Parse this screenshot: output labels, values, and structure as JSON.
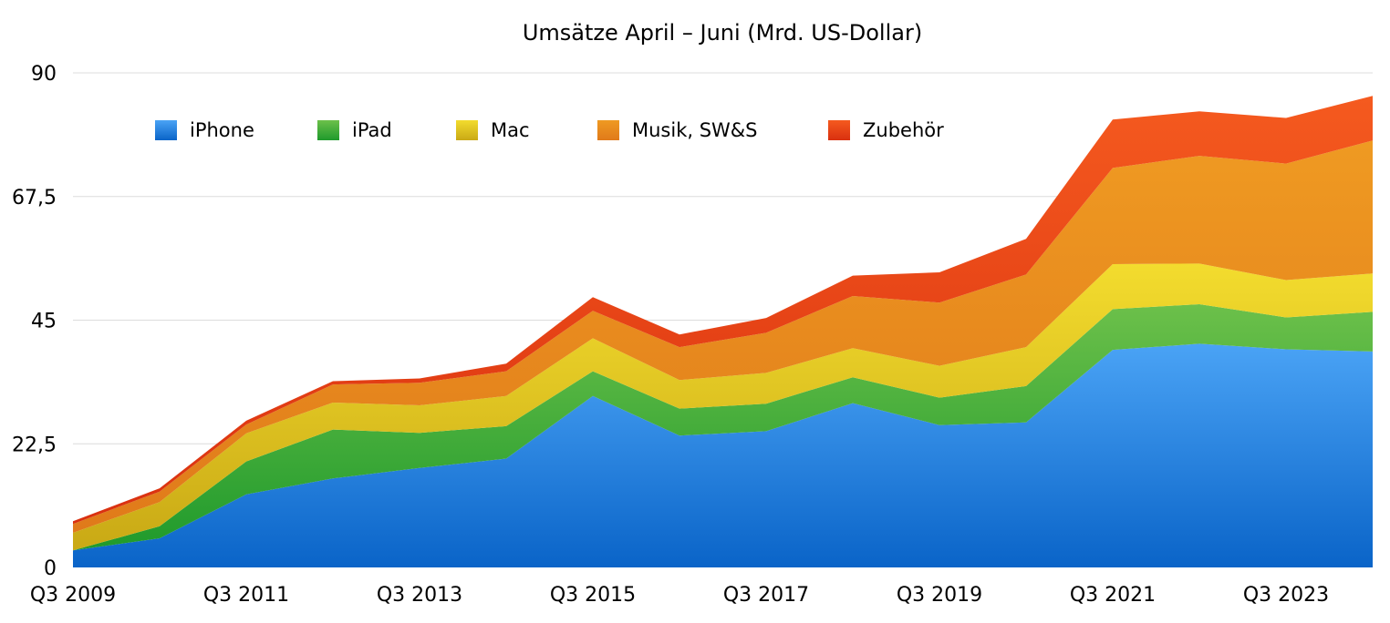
{
  "chart_data": {
    "type": "area",
    "stacked": true,
    "title": "Umsätze April – Juni (Mrd. US-Dollar)",
    "xlabel": "",
    "ylabel": "",
    "ylim": [
      0,
      90
    ],
    "y_ticks": [
      "0",
      "22,5",
      "45",
      "67,5",
      "90"
    ],
    "y_tick_values": [
      0,
      22.5,
      45,
      67.5,
      90
    ],
    "categories": [
      "Q3 2009",
      "Q3 2010",
      "Q3 2011",
      "Q3 2012",
      "Q3 2013",
      "Q3 2014",
      "Q3 2015",
      "Q3 2016",
      "Q3 2017",
      "Q3 2018",
      "Q3 2019",
      "Q3 2020",
      "Q3 2021",
      "Q3 2022",
      "Q3 2023",
      "Q3 2024"
    ],
    "x_tick_labels": [
      "Q3 2009",
      "Q3 2011",
      "Q3 2013",
      "Q3 2015",
      "Q3 2017",
      "Q3 2019",
      "Q3 2021",
      "Q3 2023"
    ],
    "grid": true,
    "legend_position": "top-left",
    "series": [
      {
        "name": "iPhone",
        "color_top": "#4aa3f5",
        "color_bottom": "#0a64c8",
        "values": [
          3.1,
          5.3,
          13.3,
          16.2,
          18.1,
          19.8,
          31.2,
          24.0,
          24.8,
          29.9,
          25.9,
          26.4,
          39.6,
          40.7,
          39.7,
          39.3
        ]
      },
      {
        "name": "iPad",
        "color_top": "#6cc04a",
        "color_bottom": "#1f9a2c",
        "values": [
          0,
          2.2,
          6.0,
          8.9,
          6.4,
          5.9,
          4.5,
          4.9,
          5.0,
          4.7,
          5.0,
          6.6,
          7.4,
          7.2,
          5.8,
          7.2
        ]
      },
      {
        "name": "Mac",
        "color_top": "#f3dc2e",
        "color_bottom": "#c9a915",
        "values": [
          3.2,
          4.4,
          5.1,
          4.9,
          5.0,
          5.5,
          6.0,
          5.2,
          5.6,
          5.3,
          5.8,
          7.1,
          8.2,
          7.4,
          6.8,
          7.0
        ]
      },
      {
        "name": "Musik, SW&S",
        "color_top": "#ef9a22",
        "color_bottom": "#e07a1a",
        "values": [
          1.6,
          1.9,
          1.6,
          3.3,
          4.1,
          4.5,
          5.0,
          6.0,
          7.3,
          9.5,
          11.5,
          13.2,
          17.5,
          19.6,
          21.2,
          24.2
        ]
      },
      {
        "name": "Zubehör",
        "color_top": "#f55a1f",
        "color_bottom": "#d9300f",
        "values": [
          0.5,
          0.6,
          0.7,
          0.6,
          0.8,
          1.4,
          2.5,
          2.3,
          2.7,
          3.7,
          5.5,
          6.5,
          8.8,
          8.1,
          8.3,
          8.1
        ]
      }
    ]
  }
}
